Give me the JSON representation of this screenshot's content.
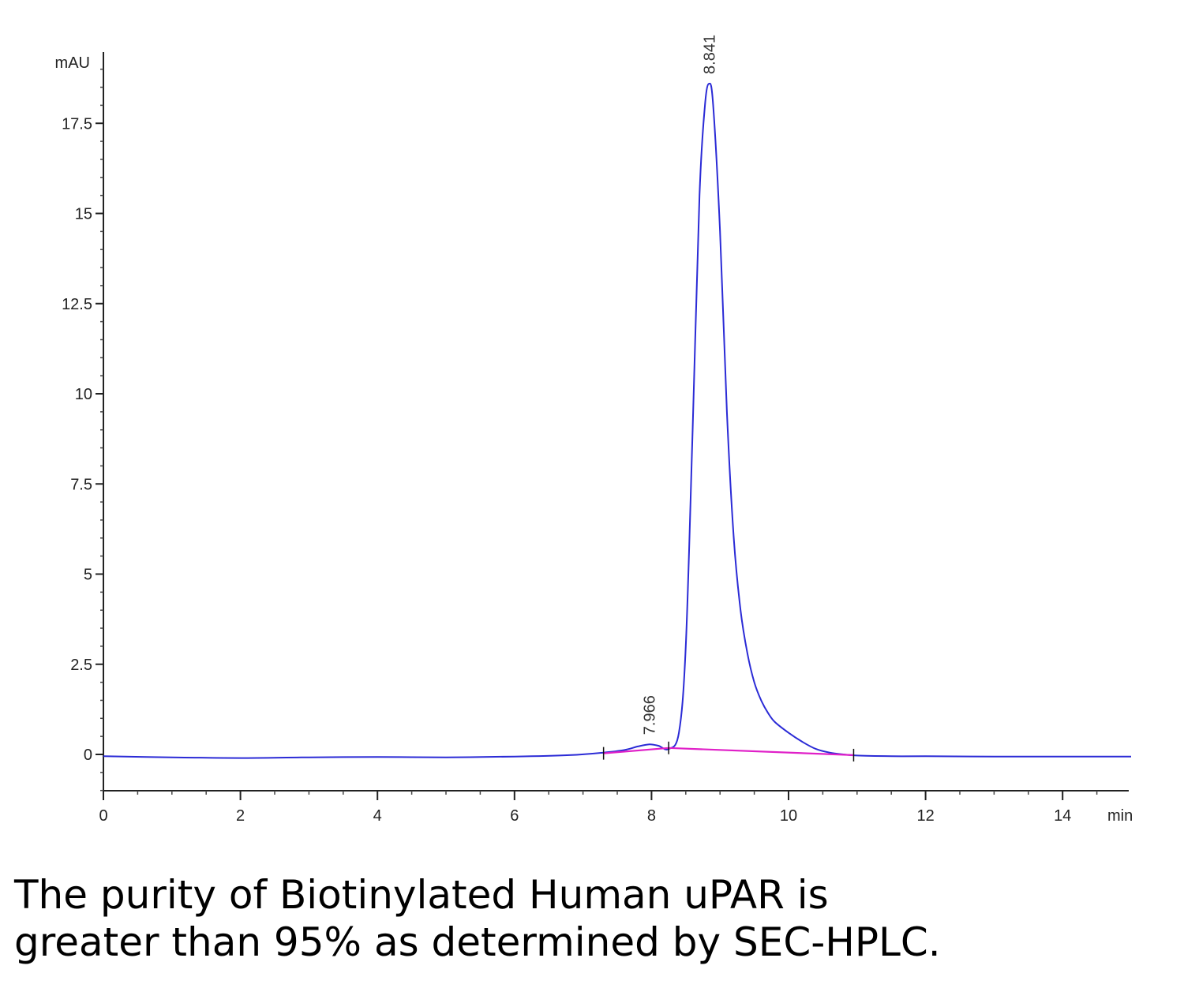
{
  "chart_data": {
    "type": "line",
    "y_unit": "mAU",
    "x_unit": "min",
    "xlim": [
      0,
      15
    ],
    "ylim": [
      -1,
      19
    ],
    "x_ticks": [
      0,
      2,
      4,
      6,
      8,
      10,
      12,
      14
    ],
    "y_ticks": [
      0,
      2.5,
      5,
      7.5,
      10,
      12.5,
      15,
      17.5
    ],
    "x_tick_labels": [
      "0",
      "2",
      "4",
      "6",
      "8",
      "10",
      "12",
      "14"
    ],
    "y_tick_labels": [
      "0",
      "2.5",
      "5",
      "7.5",
      "10",
      "12.5",
      "15",
      "17.5"
    ],
    "grid": false,
    "series": [
      {
        "color": "#2b2bd6",
        "x": [
          0,
          1,
          2,
          3,
          4,
          5,
          6,
          6.8,
          7.3,
          7.6,
          7.8,
          7.97,
          8.1,
          8.25,
          8.4,
          8.5,
          8.6,
          8.7,
          8.78,
          8.841,
          8.9,
          9.0,
          9.1,
          9.2,
          9.3,
          9.4,
          9.5,
          9.6,
          9.7,
          9.8,
          10.0,
          10.2,
          10.4,
          10.6,
          10.8,
          11.0,
          11.5,
          12.0,
          13.0,
          14.0,
          15.0
        ],
        "y": [
          -0.05,
          -0.08,
          -0.1,
          -0.08,
          -0.07,
          -0.08,
          -0.06,
          -0.02,
          0.05,
          0.12,
          0.22,
          0.28,
          0.24,
          0.15,
          0.6,
          3.0,
          9.0,
          15.5,
          18.0,
          18.6,
          18.0,
          14.5,
          9.5,
          6.0,
          4.0,
          2.8,
          2.0,
          1.5,
          1.15,
          0.9,
          0.6,
          0.35,
          0.15,
          0.05,
          0.0,
          -0.03,
          -0.05,
          -0.05,
          -0.06,
          -0.06,
          -0.06
        ]
      },
      {
        "color": "#e020c8",
        "x": [
          7.3,
          8.25,
          10.95
        ],
        "y": [
          0.03,
          0.18,
          -0.02
        ]
      }
    ],
    "annotations": [
      {
        "text": "8.841",
        "x": 8.841,
        "y": 18.6
      },
      {
        "text": "7.966",
        "x": 7.966,
        "y": 0.28
      }
    ]
  },
  "caption": {
    "line1": "The purity of Biotinylated Human uPAR is",
    "line2": "greater than 95% as determined by SEC-HPLC."
  }
}
